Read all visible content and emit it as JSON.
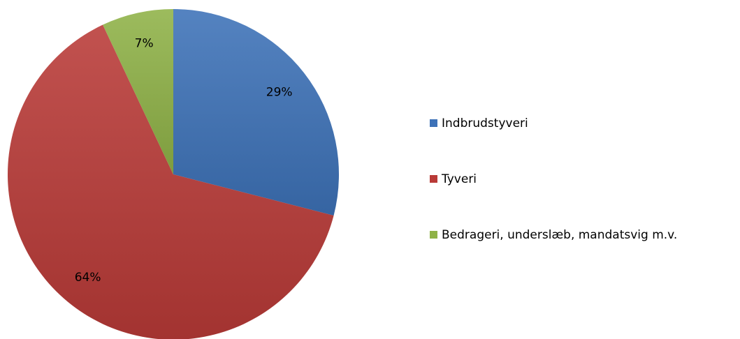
{
  "chart_data": {
    "type": "pie",
    "categories": [
      "Indbrudstyveri",
      "Tyveri",
      "Bedrageri, underslæb, mandatsvig  m.v."
    ],
    "values": [
      29,
      64,
      7
    ],
    "value_labels": [
      "29%",
      "64%",
      "7%"
    ],
    "colors": [
      "#3d72b8",
      "#b93a37",
      "#8fb247"
    ],
    "legend": "right"
  }
}
